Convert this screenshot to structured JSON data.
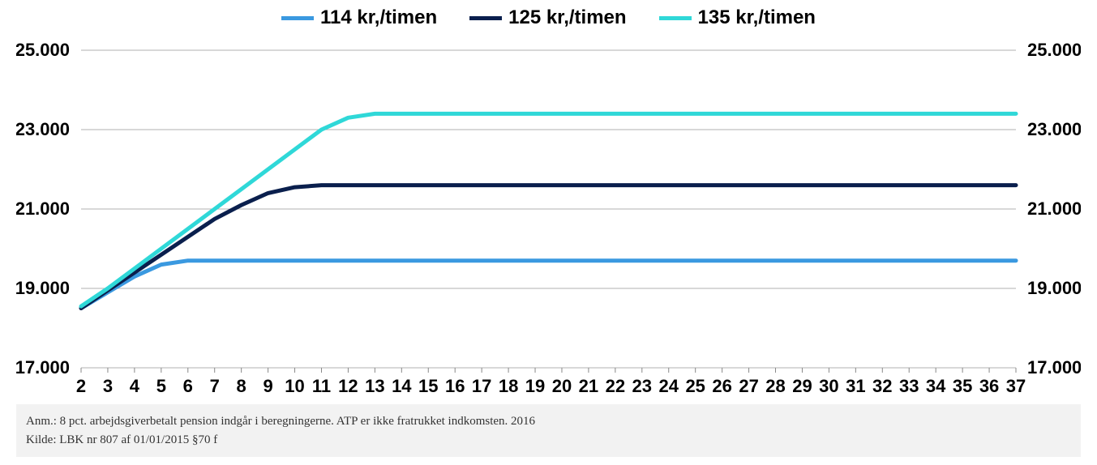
{
  "legend": {
    "items": [
      {
        "label": "114 kr,/timen",
        "color": "#3a99e0"
      },
      {
        "label": "125 kr,/timen",
        "color": "#0a1f4d"
      },
      {
        "label": "135 kr,/timen",
        "color": "#2fd8d8"
      }
    ],
    "font_size": 24,
    "font_weight": 700
  },
  "chart": {
    "type": "line",
    "background_color": "#ffffff",
    "grid_color": "#b0b0b0",
    "axis_color": "#888888",
    "tick_color": "#888888",
    "x_categories": [
      "2",
      "3",
      "4",
      "5",
      "6",
      "7",
      "8",
      "9",
      "10",
      "11",
      "12",
      "13",
      "14",
      "15",
      "16",
      "17",
      "18",
      "19",
      "20",
      "21",
      "22",
      "23",
      "24",
      "25",
      "26",
      "27",
      "28",
      "29",
      "30",
      "31",
      "32",
      "33",
      "34",
      "35",
      "36",
      "37"
    ],
    "x_tick_fontsize": 22,
    "x_tick_fontweight": 700,
    "ylim": [
      17000,
      25000
    ],
    "ytick_step": 2000,
    "ytick_labels": [
      "17.000",
      "19.000",
      "21.000",
      "23.000",
      "25.000"
    ],
    "ytick_fontsize": 22,
    "ytick_fontweight": 700,
    "line_width": 5,
    "series": [
      {
        "name": "114 kr,/timen",
        "color": "#3a99e0",
        "values": [
          18500,
          18900,
          19300,
          19600,
          19700,
          19700,
          19700,
          19700,
          19700,
          19700,
          19700,
          19700,
          19700,
          19700,
          19700,
          19700,
          19700,
          19700,
          19700,
          19700,
          19700,
          19700,
          19700,
          19700,
          19700,
          19700,
          19700,
          19700,
          19700,
          19700,
          19700,
          19700,
          19700,
          19700,
          19700,
          19700
        ]
      },
      {
        "name": "125 kr,/timen",
        "color": "#0a1f4d",
        "values": [
          18500,
          18950,
          19400,
          19850,
          20300,
          20750,
          21100,
          21400,
          21550,
          21600,
          21600,
          21600,
          21600,
          21600,
          21600,
          21600,
          21600,
          21600,
          21600,
          21600,
          21600,
          21600,
          21600,
          21600,
          21600,
          21600,
          21600,
          21600,
          21600,
          21600,
          21600,
          21600,
          21600,
          21600,
          21600,
          21600
        ]
      },
      {
        "name": "135 kr,/timen",
        "color": "#2fd8d8",
        "values": [
          18550,
          19000,
          19500,
          20000,
          20500,
          21000,
          21500,
          22000,
          22500,
          23000,
          23300,
          23400,
          23400,
          23400,
          23400,
          23400,
          23400,
          23400,
          23400,
          23400,
          23400,
          23400,
          23400,
          23400,
          23400,
          23400,
          23400,
          23400,
          23400,
          23400,
          23400,
          23400,
          23400,
          23400,
          23400,
          23400
        ]
      }
    ]
  },
  "footnote": {
    "line1": "Anm.:  8 pct. arbejdsgiverbetalt pension indgår i beregningerne. ATP er ikke fratrukket indkomsten. 2016",
    "line2": "Kilde: LBK nr 807 af 01/01/2015 §70 f",
    "background_color": "#f2f2f2",
    "font_size": 15,
    "text_color": "#333333"
  }
}
